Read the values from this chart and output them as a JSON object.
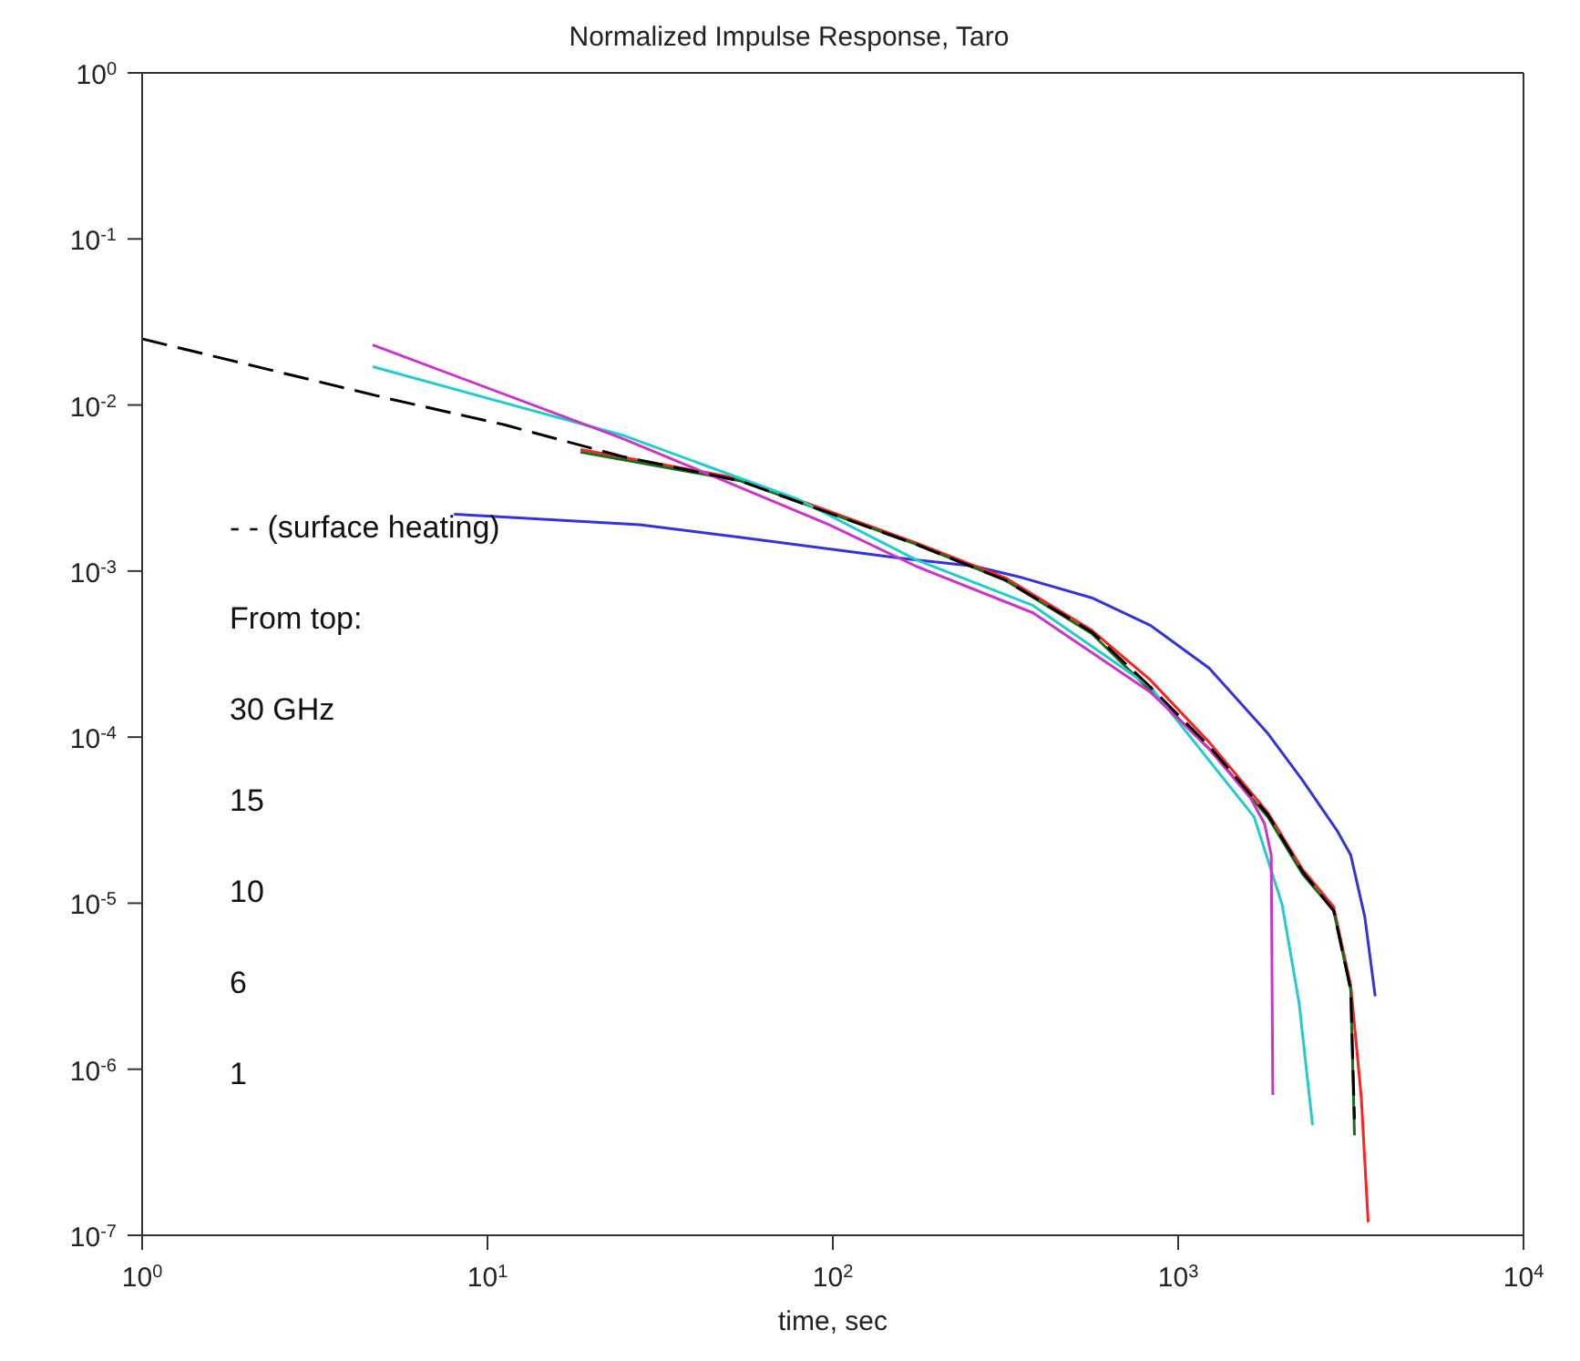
{
  "chart_data": {
    "type": "line",
    "title": "Normalized Impulse Response, Taro",
    "xlabel": "time, sec",
    "log": "xy",
    "legend": false,
    "marker": "none",
    "xlim": [
      1,
      10000
    ],
    "ylim": [
      1e-07,
      1
    ],
    "xticks": [
      {
        "value": 1,
        "label": "10$^{0}$"
      },
      {
        "value": 10,
        "label": "10$^{1}$"
      },
      {
        "value": 100,
        "label": "10$^{2}$"
      },
      {
        "value": 1000,
        "label": "10$^{3}$"
      },
      {
        "value": 10000,
        "label": "10$^{4}$"
      }
    ],
    "yticks": [
      {
        "value": 1e-07,
        "label": "10$^{-7}$"
      },
      {
        "value": 1e-06,
        "label": "10$^{-6}$"
      },
      {
        "value": 1e-05,
        "label": "10$^{-5}$"
      },
      {
        "value": 0.0001,
        "label": "10$^{-4}$"
      },
      {
        "value": 0.001,
        "label": "10$^{-3}$"
      },
      {
        "value": 0.01,
        "label": "10$^{-2}$"
      },
      {
        "value": 0.1,
        "label": "10$^{-1}$"
      },
      {
        "value": 1,
        "label": "10$^{0}$"
      }
    ],
    "annotations": [
      "- - (surface heating)",
      "From top:",
      "30 GHz",
      "15",
      "10",
      "6",
      "1"
    ],
    "series": [
      {
        "color": "#3333dd",
        "x": [
          8,
          27.6,
          53.7,
          155,
          257,
          355,
          562,
          832,
          1230,
          1820,
          2290,
          2880,
          3160,
          3470,
          3720
        ],
        "values": [
          0.0022,
          0.0019,
          0.0016,
          0.0012,
          0.00107,
          0.00091,
          0.00069,
          0.00047,
          0.00026,
          0.000105,
          5.5e-05,
          2.75e-05,
          1.95e-05,
          8.3e-06,
          2.75e-06
        ]
      },
      {
        "color": "#ff2020",
        "x": [
          18.6,
          53.7,
          174,
          316,
          562,
          832,
          1230,
          1820,
          2290,
          2820,
          3160,
          3390,
          3550
        ],
        "values": [
          0.0054,
          0.0036,
          0.00148,
          0.00091,
          0.00044,
          0.00022,
          9.3e-05,
          3.5e-05,
          1.6e-05,
          9.5e-06,
          3.2e-06,
          6.8e-07,
          1.2e-07
        ]
      },
      {
        "color": "#1a6b1a",
        "x": [
          18.6,
          53.7,
          174,
          316,
          562,
          832,
          1230,
          1820,
          2290,
          2820,
          3160,
          3240
        ],
        "values": [
          0.0052,
          0.0035,
          0.00145,
          0.00088,
          0.00042,
          0.00019,
          8.5e-05,
          3.3e-05,
          1.5e-05,
          9e-06,
          3e-06,
          4e-07
        ]
      },
      {
        "color": "#22cccc",
        "x": [
          4.65,
          24.5,
          79.4,
          174,
          380,
          832,
          1660,
          2000,
          2240,
          2450
        ],
        "values": [
          0.017,
          0.0066,
          0.0027,
          0.00117,
          0.00062,
          0.0002,
          3.3e-05,
          9.8e-06,
          2.5e-06,
          4.6e-07
        ]
      },
      {
        "color": "#cc33cc",
        "x": [
          4.65,
          24.5,
          53.7,
          97.7,
          174,
          380,
          832,
          1230,
          1620,
          1780,
          1860,
          1880
        ],
        "values": [
          0.023,
          0.0063,
          0.0032,
          0.0019,
          0.00107,
          0.00056,
          0.000186,
          8.5e-05,
          4.3e-05,
          3e-05,
          1.95e-05,
          7e-07
        ]
      },
      {
        "color": "#000000",
        "line_style": "dashed",
        "x": [
          1,
          5.1,
          11.2,
          24.5,
          53.7,
          174,
          316,
          562,
          832,
          1230,
          1820,
          2290,
          2820,
          3160,
          3240
        ],
        "values": [
          0.025,
          0.011,
          0.0076,
          0.0049,
          0.0035,
          0.00145,
          0.00088,
          0.00043,
          0.0002,
          8.8e-05,
          3.4e-05,
          1.55e-05,
          9e-06,
          3e-06,
          5e-07
        ]
      }
    ]
  }
}
